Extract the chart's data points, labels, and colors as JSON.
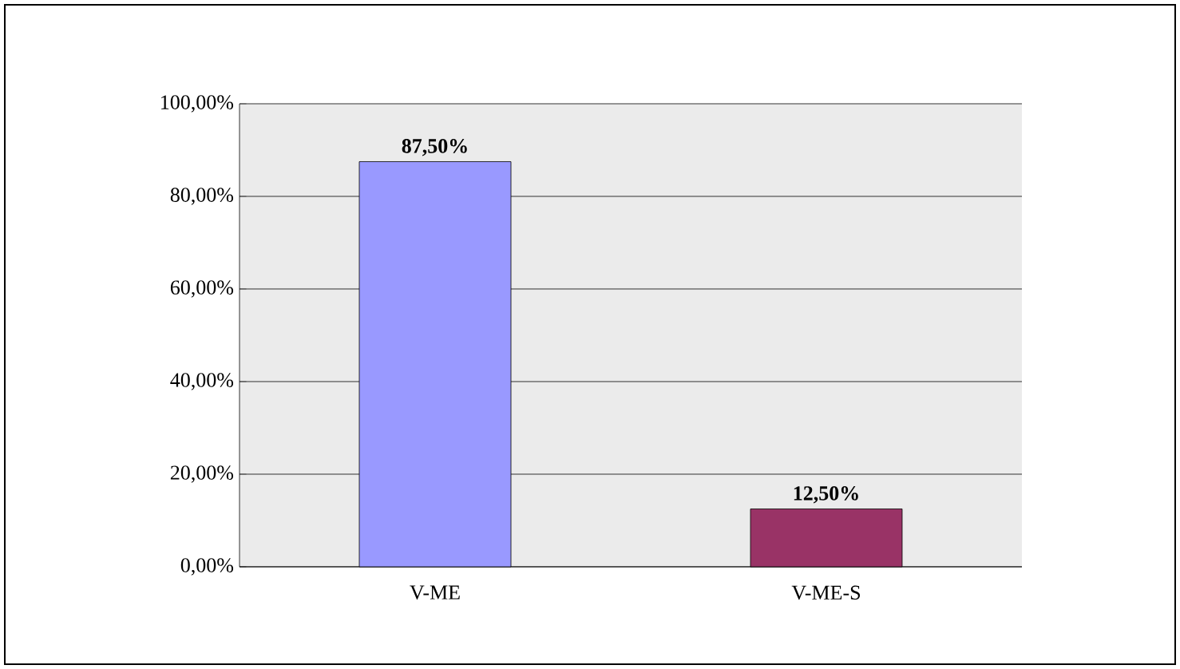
{
  "chart_data": {
    "type": "bar",
    "categories": [
      "V-ME",
      "V-ME-S"
    ],
    "values": [
      87.5,
      12.5
    ],
    "colors": [
      "#9999ff",
      "#993366"
    ],
    "value_labels": [
      "87,50%",
      "12,50%"
    ],
    "ylim": [
      0,
      100
    ],
    "yticks": [
      {
        "value": 0,
        "label": "0,00%"
      },
      {
        "value": 20,
        "label": "20,00%"
      },
      {
        "value": 40,
        "label": "40,00%"
      },
      {
        "value": 60,
        "label": "60,00%"
      },
      {
        "value": 80,
        "label": "80,00%"
      },
      {
        "value": 100,
        "label": "100,00%"
      }
    ],
    "grid": "y"
  }
}
